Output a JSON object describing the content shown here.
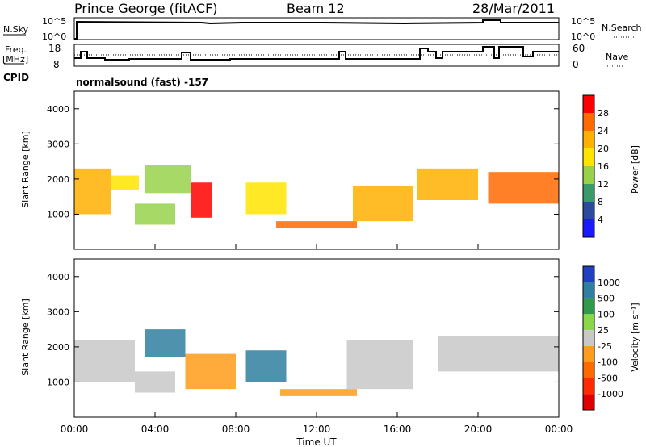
{
  "header": {
    "site_title": "Prince George (fitACF)",
    "beam": "Beam 12",
    "date": "28/Mar/2011"
  },
  "status_panels": {
    "nsky_label": "N.Sky",
    "nsky_ticks": [
      "10^5",
      "10^0"
    ],
    "nsearch_label": "N.Search",
    "nsearch_ticks": [
      "10^5",
      "10^0"
    ],
    "freq_label_line1": "Freq.",
    "freq_label_line2": "[MHz]",
    "freq_ticks": [
      "18",
      "8"
    ],
    "nave_label": "Nave",
    "nave_ticks": [
      "60",
      "0"
    ],
    "cpid_label": "CPID",
    "cpid_text": "normalsound (fast) -157"
  },
  "colorbars": {
    "power": {
      "label": "Power [dB]",
      "ticks": [
        "28",
        "24",
        "20",
        "16",
        "12",
        "8",
        "4"
      ],
      "colors": [
        "#ff0000",
        "#ff6a00",
        "#ffb000",
        "#ffe400",
        "#96d24a",
        "#3a9a6a",
        "#2c4aa0",
        "#1a1aff"
      ]
    },
    "velocity": {
      "label": "Velocity [m s⁻¹]",
      "ticks": [
        "1000",
        "500",
        "100",
        "25",
        "-25",
        "-100",
        "-500",
        "-1000"
      ],
      "colors": [
        "#2040c0",
        "#2f7fa0",
        "#2f9a4a",
        "#8ad84a",
        "#c8c8c8",
        "#ff9c1a",
        "#ff6a00",
        "#ff2a00",
        "#e00000"
      ]
    }
  },
  "chart_data": [
    {
      "type": "heatmap",
      "title": "Power",
      "ylabel": "Slant Range [km]",
      "yticks": [
        "4000",
        "3000",
        "2000",
        "1000"
      ],
      "ylim": [
        0,
        4500
      ],
      "xlim": [
        "00:00",
        "24:00"
      ],
      "description_series": "Power (dB) of backscatter vs time and slant range",
      "echo_regions": [
        {
          "t_start": 0.0,
          "t_end": 1.8,
          "range_low": 1000,
          "range_high": 2300,
          "power_db": 20
        },
        {
          "t_start": 1.8,
          "t_end": 3.2,
          "range_low": 1700,
          "range_high": 2100,
          "power_db": 16
        },
        {
          "t_start": 3.0,
          "t_end": 5.0,
          "range_low": 700,
          "range_high": 1300,
          "power_db": 12
        },
        {
          "t_start": 3.5,
          "t_end": 5.8,
          "range_low": 1600,
          "range_high": 2400,
          "power_db": 12
        },
        {
          "t_start": 5.8,
          "t_end": 6.8,
          "range_low": 900,
          "range_high": 1900,
          "power_db": 28
        },
        {
          "t_start": 8.5,
          "t_end": 10.5,
          "range_low": 1000,
          "range_high": 1900,
          "power_db": 16
        },
        {
          "t_start": 10.0,
          "t_end": 14.0,
          "range_low": 600,
          "range_high": 800,
          "power_db": 24
        },
        {
          "t_start": 13.8,
          "t_end": 16.8,
          "range_low": 800,
          "range_high": 1800,
          "power_db": 20
        },
        {
          "t_start": 17.0,
          "t_end": 20.0,
          "range_low": 1400,
          "range_high": 2300,
          "power_db": 20
        },
        {
          "t_start": 20.5,
          "t_end": 24.0,
          "range_low": 1300,
          "range_high": 2200,
          "power_db": 24
        }
      ]
    },
    {
      "type": "heatmap",
      "title": "Velocity",
      "ylabel": "Slant Range [km]",
      "yticks": [
        "4000",
        "3000",
        "2000",
        "1000"
      ],
      "ylim": [
        0,
        4500
      ],
      "xlabel": "Time UT",
      "xticks": [
        "00:00",
        "04:00",
        "08:00",
        "12:00",
        "16:00",
        "20:00",
        "00:00"
      ],
      "xlim": [
        "00:00",
        "24:00"
      ],
      "description_series": "Line-of-sight velocity (m/s) vs time and slant range",
      "echo_regions": [
        {
          "t_start": 0.0,
          "t_end": 3.0,
          "range_low": 1000,
          "range_high": 2200,
          "velocity": 0
        },
        {
          "t_start": 3.5,
          "t_end": 5.5,
          "range_low": 1700,
          "range_high": 2500,
          "velocity": 500
        },
        {
          "t_start": 3.0,
          "t_end": 5.0,
          "range_low": 700,
          "range_high": 1300,
          "velocity": 0
        },
        {
          "t_start": 5.5,
          "t_end": 8.0,
          "range_low": 800,
          "range_high": 1800,
          "velocity": -100
        },
        {
          "t_start": 8.5,
          "t_end": 10.5,
          "range_low": 1000,
          "range_high": 1900,
          "velocity": 500
        },
        {
          "t_start": 10.2,
          "t_end": 14.0,
          "range_low": 600,
          "range_high": 800,
          "velocity": -100
        },
        {
          "t_start": 13.5,
          "t_end": 16.8,
          "range_low": 800,
          "range_high": 2200,
          "velocity": 0
        },
        {
          "t_start": 18.0,
          "t_end": 24.0,
          "range_low": 1300,
          "range_high": 2300,
          "velocity": 0
        }
      ]
    }
  ]
}
